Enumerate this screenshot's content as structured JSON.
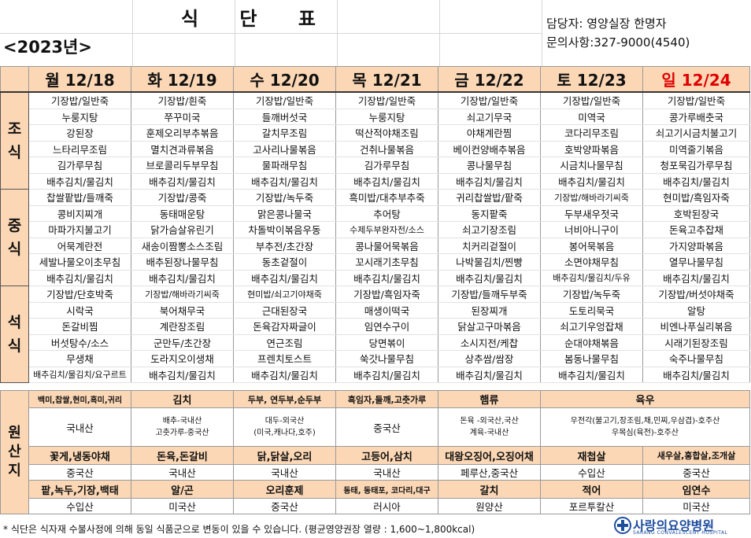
{
  "header": {
    "title": "식 단 표",
    "year": "<2023년>",
    "manager": "담당자: 영양실장 한명자",
    "contact": "문의사항:327-9000(4540)"
  },
  "days": [
    "월 12/18",
    "화 12/19",
    "수 12/20",
    "목 12/21",
    "금 12/22",
    "토 12/23",
    "일 12/24"
  ],
  "meals": [
    {
      "label": "조 식",
      "rows": [
        [
          "기장밥/일반죽",
          "기장밥/흰죽",
          "기장밥/일반죽",
          "기장밥/일반죽",
          "기장밥/일반죽",
          "기장밥/일반죽",
          "기장밥/일반죽"
        ],
        [
          "누룽지탕",
          "쭈꾸미국",
          "들깨버섯국",
          "누룽지탕",
          "쇠고기무국",
          "미역국",
          "콩가루배춧국"
        ],
        [
          "강된장",
          "훈제오리부추볶음",
          "갈치무조림",
          "떡산적야채조림",
          "야채계란찜",
          "코다리무조림",
          "쇠고기시금치불고기"
        ],
        [
          "느타리무조림",
          "멸치견과류볶음",
          "고사리나물볶음",
          "건취나물볶음",
          "베이컨양배추볶음",
          "호박양파볶음",
          "미역줄기볶음"
        ],
        [
          "김가루무침",
          "브로콜리두부무침",
          "물파래무침",
          "김가루무침",
          "콩나물무침",
          "시금치나물무침",
          "청포묵김가루무침"
        ],
        [
          "배추김치/물김치",
          "배추김치/물김치",
          "배추김치/물김치",
          "배추김치/물김치",
          "배추김치/물김치",
          "배추김치/물김치",
          "배추김치/물김치"
        ]
      ]
    },
    {
      "label": "중 식",
      "rows": [
        [
          "찹쌀팥밥/들깨죽",
          "기장밥/콩죽",
          "기장밥/녹두죽",
          "흑미밥/대추부추죽",
          "귀리찹쌀밥/팥죽",
          "기장밥/해바라기씨죽",
          "현미밥/흑임자죽"
        ],
        [
          "콩비지찌개",
          "동태매운탕",
          "맑은콩나물국",
          "추어탕",
          "동지팥죽",
          "두부새우젓국",
          "호박된장국"
        ],
        [
          "마파가지불고기",
          "닭가슴살유린기",
          "차돌박이볶음우동",
          "수제두부완자전/소스",
          "쇠고기장조림",
          "너비아니구이",
          "돈육고추잡채"
        ],
        [
          "어묵계란전",
          "새송이짬뽕소스조림",
          "부추전/초간장",
          "콩나물어묵볶음",
          "치커리겉절이",
          "봉어묵볶음",
          "가지양파볶음"
        ],
        [
          "세발나물오이초무침",
          "배추된장나물무침",
          "동초겉절이",
          "꼬시래기초무침",
          "나박물김치/찐빵",
          "소면야채무침",
          "열무나물무침"
        ],
        [
          "배추김치/물김치",
          "배추김치/물김치",
          "배추김치/물김치",
          "배추김치/물김치",
          "배추김치/물김치",
          "배추김치/물김치/두유",
          "배추김치/물김치"
        ]
      ]
    },
    {
      "label": "석 식",
      "rows": [
        [
          "기장밥/단호박죽",
          "기장밥/해바라기씨죽",
          "현미밥/쇠고기야채죽",
          "기장밥/흑임자죽",
          "기장밥/들깨두부죽",
          "기장밥/녹두죽",
          "기장밥/버섯야채죽"
        ],
        [
          "시락국",
          "북어채무국",
          "근대된장국",
          "매생이떡국",
          "된장찌개",
          "도토리묵국",
          "알탕"
        ],
        [
          "돈갈비찜",
          "계란장조림",
          "돈육감자짜글이",
          "임연수구이",
          "닭살고구마볶음",
          "쇠고기우엉잡채",
          "비엔나푸실리볶음"
        ],
        [
          "버섯탕수/소스",
          "군만두/초간장",
          "연근조림",
          "당면볶이",
          "소시지전/케찹",
          "순대야채볶음",
          "시래기된장조림"
        ],
        [
          "무생채",
          "도라지오이생채",
          "프렌치토스트",
          "쑥갓나물무침",
          "상추쌈/쌈장",
          "봄동나물무침",
          "숙주나물무침"
        ],
        [
          "배추김치/물김치/요구르트",
          "배추김치/물김치",
          "배추김치/물김치",
          "배추김치/물김치",
          "배추김치/물김치",
          "배추김치/물김치",
          "배추김치/물김치"
        ]
      ]
    }
  ],
  "origin": {
    "label": "원 산 지",
    "h1": [
      "백미,찹쌀,현미,흑미,귀리",
      "김치",
      "두부, 연두부,순두부",
      "흑임자,들깨,고춧가루",
      "햄류",
      "",
      "육우"
    ],
    "v1": [
      "국내산",
      "배추-국내산\n고춧가루-중국산",
      "대두-외국산\n(미국,캐나다,호주)",
      "중국산",
      "돈육 -외국산,국산\n계육-국내산",
      "",
      "우전각(불고기,장조림,채,민찌,우삼겹)-호주산\n우목심(육전)-호주산"
    ],
    "h2": [
      "꽃게,냉동야채",
      "돈육,돈갈비",
      "닭,닭살,오리",
      "고등어,삼치",
      "대왕오징어,오징어채",
      "재첩살",
      "새우살,홍합살,조개살"
    ],
    "v2": [
      "중국산",
      "국내산",
      "국내산",
      "국내산",
      "페루산,중국산",
      "수입산",
      "중국산"
    ],
    "h3": [
      "팥,녹두,기장,백태",
      "알/곤",
      "오리훈제",
      "동태, 동태포, 코다리,대구",
      "갈치",
      "적어",
      "임연수"
    ],
    "v3": [
      "수입산",
      "미국산",
      "중국산",
      "러시아",
      "원양산",
      "포르투칼산",
      "미국산"
    ]
  },
  "footer": {
    "note": "* 식단은 식자재 수불사정에 의해 동일 식품군으로 변동이 있을 수 있습니다. (평균영양권장 열량 : 1,600~1,800kcal)"
  },
  "logo": {
    "name": "사랑의요양병원",
    "sub": "SARANG CONVALESCENT HOSPITAL"
  },
  "colors": {
    "header_bg": "#fbd7b5",
    "sunday": "#e00000",
    "logo": "#1f4e9e"
  }
}
